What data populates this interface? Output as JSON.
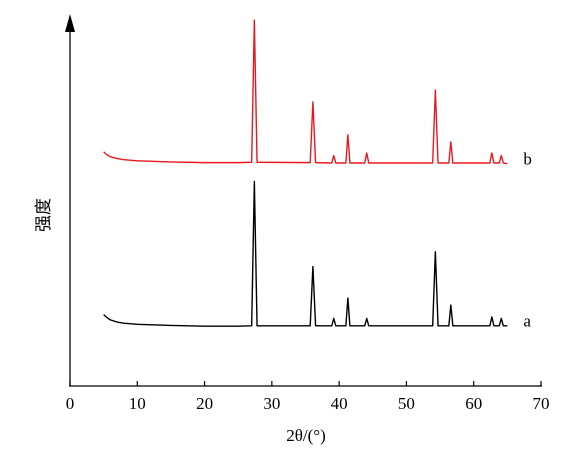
{
  "chart_data": {
    "type": "line",
    "ylabel": "强度",
    "xlabel": "2θ/(°)",
    "x": [
      5,
      5.5,
      6,
      7,
      8,
      10,
      15,
      20,
      25,
      27.0,
      27.4,
      27.8,
      35.7,
      36.1,
      36.5,
      38.9,
      39.2,
      39.5,
      41.0,
      41.3,
      41.6,
      43.8,
      44.1,
      44.4,
      53.9,
      54.3,
      54.7,
      56.3,
      56.6,
      56.9,
      62.4,
      62.7,
      63.0,
      63.8,
      64.1,
      64.4,
      65
    ],
    "series": [
      {
        "name": "a",
        "color": "#000000",
        "values": [
          19,
          18.2,
          17.6,
          17,
          16.7,
          16.4,
          16.1,
          15.9,
          15.9,
          16,
          55,
          16,
          16,
          32,
          16,
          16,
          18,
          16,
          16,
          23.5,
          16,
          16,
          18,
          16,
          16,
          36,
          16,
          16,
          21.6,
          16,
          16,
          18.4,
          16,
          16,
          18,
          16,
          16
        ]
      },
      {
        "name": "b",
        "color": "#e8191e",
        "values": [
          63,
          62.2,
          61.7,
          61.2,
          60.9,
          60.6,
          60.3,
          60.1,
          60.1,
          60.2,
          98.6,
          60.2,
          60.1,
          76.5,
          60.1,
          60,
          62,
          60,
          60,
          67.6,
          60,
          60,
          62.7,
          60,
          60,
          79.7,
          60,
          60,
          65.7,
          60,
          60,
          62.7,
          60,
          60,
          62,
          60,
          59.8
        ]
      }
    ],
    "xlim": [
      0,
      70
    ],
    "xticks": [
      0,
      10,
      20,
      30,
      40,
      50,
      60,
      70
    ],
    "ylim": [
      0,
      100
    ]
  }
}
